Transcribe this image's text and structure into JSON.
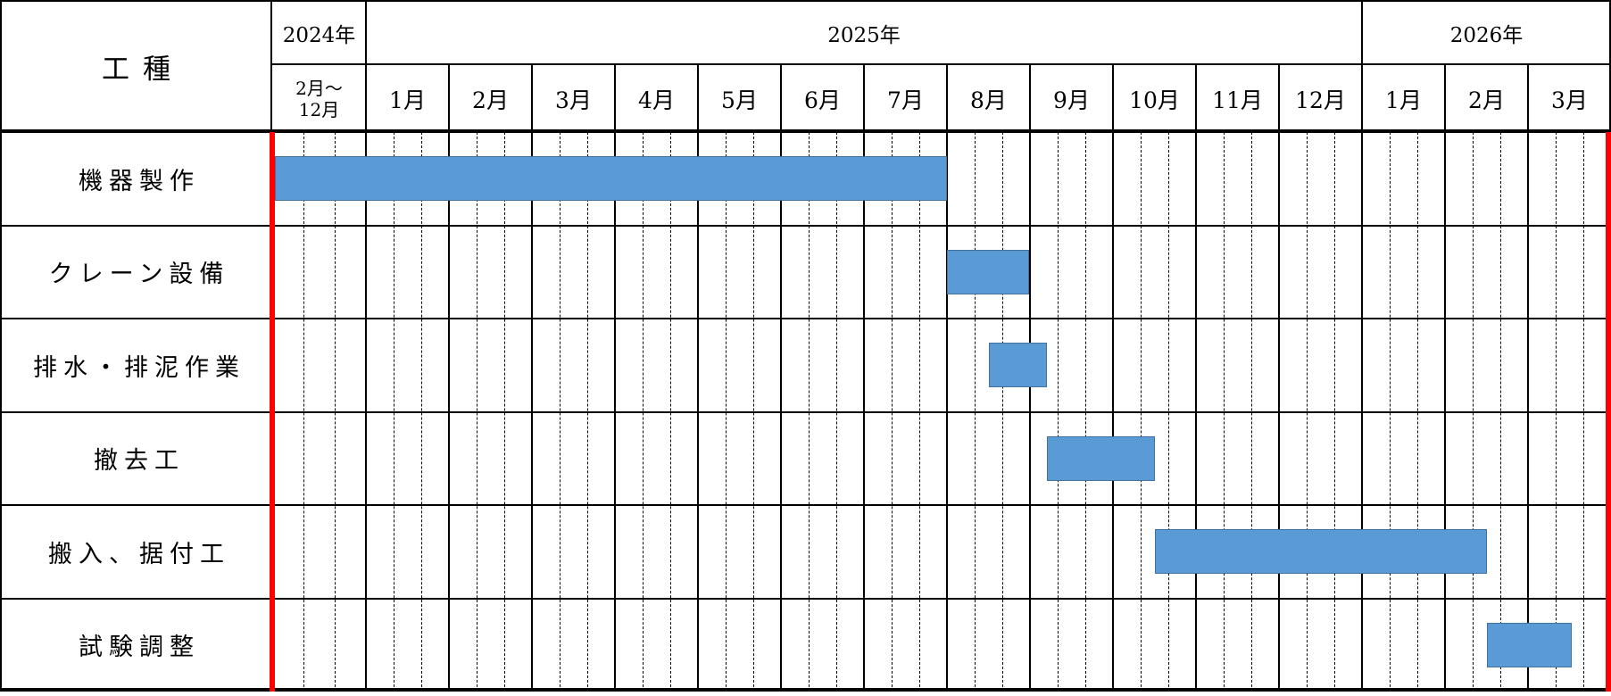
{
  "chart_data": {
    "type": "bar",
    "subtype": "gantt-schedule-table",
    "row_header": "工種",
    "years": [
      {
        "label": "2024年",
        "columns_span": 1
      },
      {
        "label": "2025年",
        "columns_span": 12
      },
      {
        "label": "2026年",
        "columns_span": 3
      }
    ],
    "columns": [
      {
        "label": "2月～12月",
        "lines": [
          "2月～",
          "12月"
        ],
        "year": "2024年"
      },
      {
        "label": "1月",
        "year": "2025年"
      },
      {
        "label": "2月",
        "year": "2025年"
      },
      {
        "label": "3月",
        "year": "2025年"
      },
      {
        "label": "4月",
        "year": "2025年"
      },
      {
        "label": "5月",
        "year": "2025年"
      },
      {
        "label": "6月",
        "year": "2025年"
      },
      {
        "label": "7月",
        "year": "2025年"
      },
      {
        "label": "8月",
        "year": "2025年"
      },
      {
        "label": "9月",
        "year": "2025年"
      },
      {
        "label": "10月",
        "year": "2025年"
      },
      {
        "label": "11月",
        "year": "2025年"
      },
      {
        "label": "12月",
        "year": "2025年"
      },
      {
        "label": "1月",
        "year": "2026年"
      },
      {
        "label": "2月",
        "year": "2026年"
      },
      {
        "label": "3月",
        "year": "2026年"
      }
    ],
    "unit_note": "bar units: 0-1 spans the 2024年2月～12月 column; each whole unit from 1 to 16 is one month from 2025年1月 to 2026年3月",
    "tasks": [
      {
        "name": "機器製作",
        "start_label": "2024年2月",
        "end_label": "2025年7月末",
        "start_unit": 0.03,
        "end_unit": 8.0
      },
      {
        "name": "クレーン設備",
        "start_label": "2025年8月初",
        "end_label": "2025年8月末",
        "start_unit": 8.0,
        "end_unit": 8.99
      },
      {
        "name": "排水・排泥作業",
        "start_label": "2025年8月中旬",
        "end_label": "2025年9月上旬",
        "start_unit": 8.5,
        "end_unit": 9.2
      },
      {
        "name": "撤去工",
        "start_label": "2025年9月上旬",
        "end_label": "2025年10月中旬",
        "start_unit": 9.2,
        "end_unit": 10.5
      },
      {
        "name": "搬入、据付工",
        "start_label": "2025年10月中旬",
        "end_label": "2026年2月中旬",
        "start_unit": 10.5,
        "end_unit": 14.5
      },
      {
        "name": "試験調整",
        "start_label": "2026年2月中旬",
        "end_label": "2026年3月中旬",
        "start_unit": 14.5,
        "end_unit": 15.52
      }
    ],
    "legend_position": "none",
    "grid": "solid month lines with dashed one-third subdivision lines",
    "colors": {
      "bar_fill": "#5B9BD5",
      "bar_border": "#41719C",
      "grid_line": "#000000",
      "boundary_marker": "#FF0000",
      "background": "#FFFFFF"
    }
  }
}
